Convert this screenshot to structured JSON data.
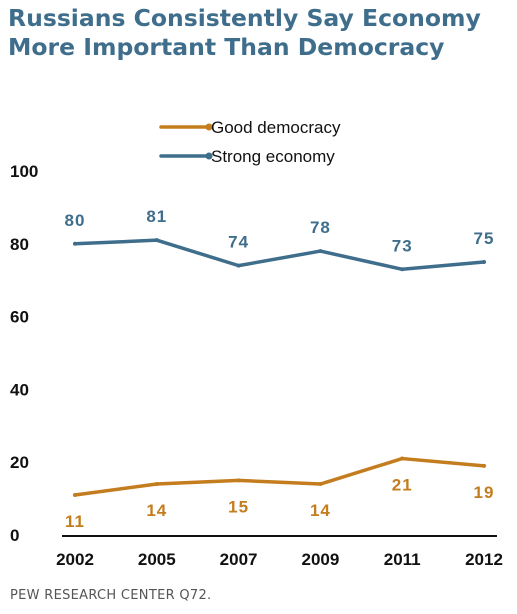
{
  "title": "Russians Consistently Say Economy More Important Than Democracy",
  "source": "PEW RESEARCH CENTER Q72.",
  "chart_data": {
    "type": "line",
    "x": [
      "2002",
      "2005",
      "2007",
      "2009",
      "2011",
      "2012"
    ],
    "series": [
      {
        "name": "Good democracy",
        "color": "#c47d1e",
        "values": [
          11,
          14,
          15,
          14,
          21,
          19
        ]
      },
      {
        "name": "Strong economy",
        "color": "#3f6e8c",
        "values": [
          80,
          81,
          74,
          78,
          73,
          75
        ]
      }
    ],
    "yticks": [
      0,
      20,
      40,
      60,
      80,
      100
    ],
    "ylim": [
      0,
      100
    ],
    "grid": false,
    "legend": "top-center",
    "xlabel": "",
    "ylabel": ""
  }
}
